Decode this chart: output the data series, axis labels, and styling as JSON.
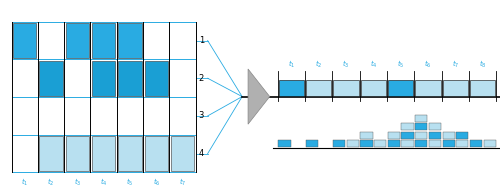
{
  "bg_color": "#ffffff",
  "cyan_dark": "#29abe2",
  "cyan_light": "#b8e0f0",
  "grid_color": "#29abe2",
  "label_color": "#29abe2",
  "left_panel": {
    "row1_filled": [
      1,
      0,
      1,
      1,
      1,
      0,
      0
    ],
    "row2_filled": [
      0,
      1,
      0,
      1,
      1,
      1,
      0
    ],
    "row3_filled": [
      0,
      0,
      0,
      0,
      0,
      0,
      0
    ],
    "row4_filled": [
      0,
      1,
      1,
      1,
      1,
      1,
      1
    ],
    "row1_color": "#29abe2",
    "row2_color": "#1a9fd4",
    "row3_color": "#ffffff",
    "row4_color": "#b8e0f0",
    "t_labels": [
      "t_1",
      "t_2",
      "t_3",
      "t_4",
      "t_5",
      "t_6",
      "t_7"
    ],
    "row_labels": [
      "1",
      "2",
      "3",
      "4"
    ]
  },
  "right_top": {
    "slot_colors": [
      "#29abe2",
      "#b8e0f0",
      "#b8e0f0",
      "#b8e0f0",
      "#29abe2",
      "#b8e0f0",
      "#b8e0f0",
      "#b8e0f0"
    ],
    "t_labels": [
      "t_1",
      "t_2",
      "t_3",
      "t_4",
      "t_5",
      "t_6",
      "t_7",
      "t_8"
    ]
  },
  "right_bottom_heights": [
    1,
    0,
    1,
    0,
    1,
    1,
    2,
    1,
    2,
    3,
    4,
    3,
    2,
    2,
    1,
    1
  ],
  "right_bottom_dark": "#29abe2",
  "right_bottom_light": "#b8e0f0"
}
